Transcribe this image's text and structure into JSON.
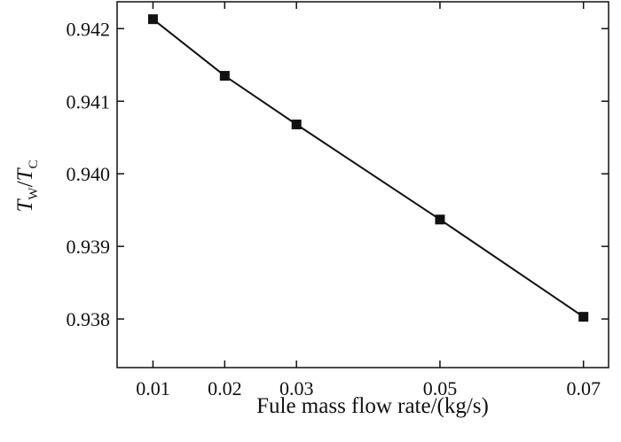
{
  "chart_data": {
    "type": "line",
    "x": [
      0.01,
      0.02,
      0.03,
      0.05,
      0.07
    ],
    "y": [
      0.94213,
      0.94135,
      0.94068,
      0.93937,
      0.93803
    ],
    "xlabel": "Fule mass flow rate/(kg/s)",
    "ylabel": {
      "main1": "T",
      "sub1": "W",
      "slash": "/",
      "main2": "T",
      "sub2": "C"
    },
    "x_ticks": [
      "0.01",
      "0.02",
      "0.03",
      "0.05",
      "0.07"
    ],
    "y_ticks": [
      "0.938",
      "0.939",
      "0.940",
      "0.941",
      "0.942"
    ],
    "xlim": [
      0.005,
      0.0735
    ],
    "ylim": [
      0.93733,
      0.94237
    ],
    "marker": "square",
    "color": "#111111",
    "grid": false
  }
}
